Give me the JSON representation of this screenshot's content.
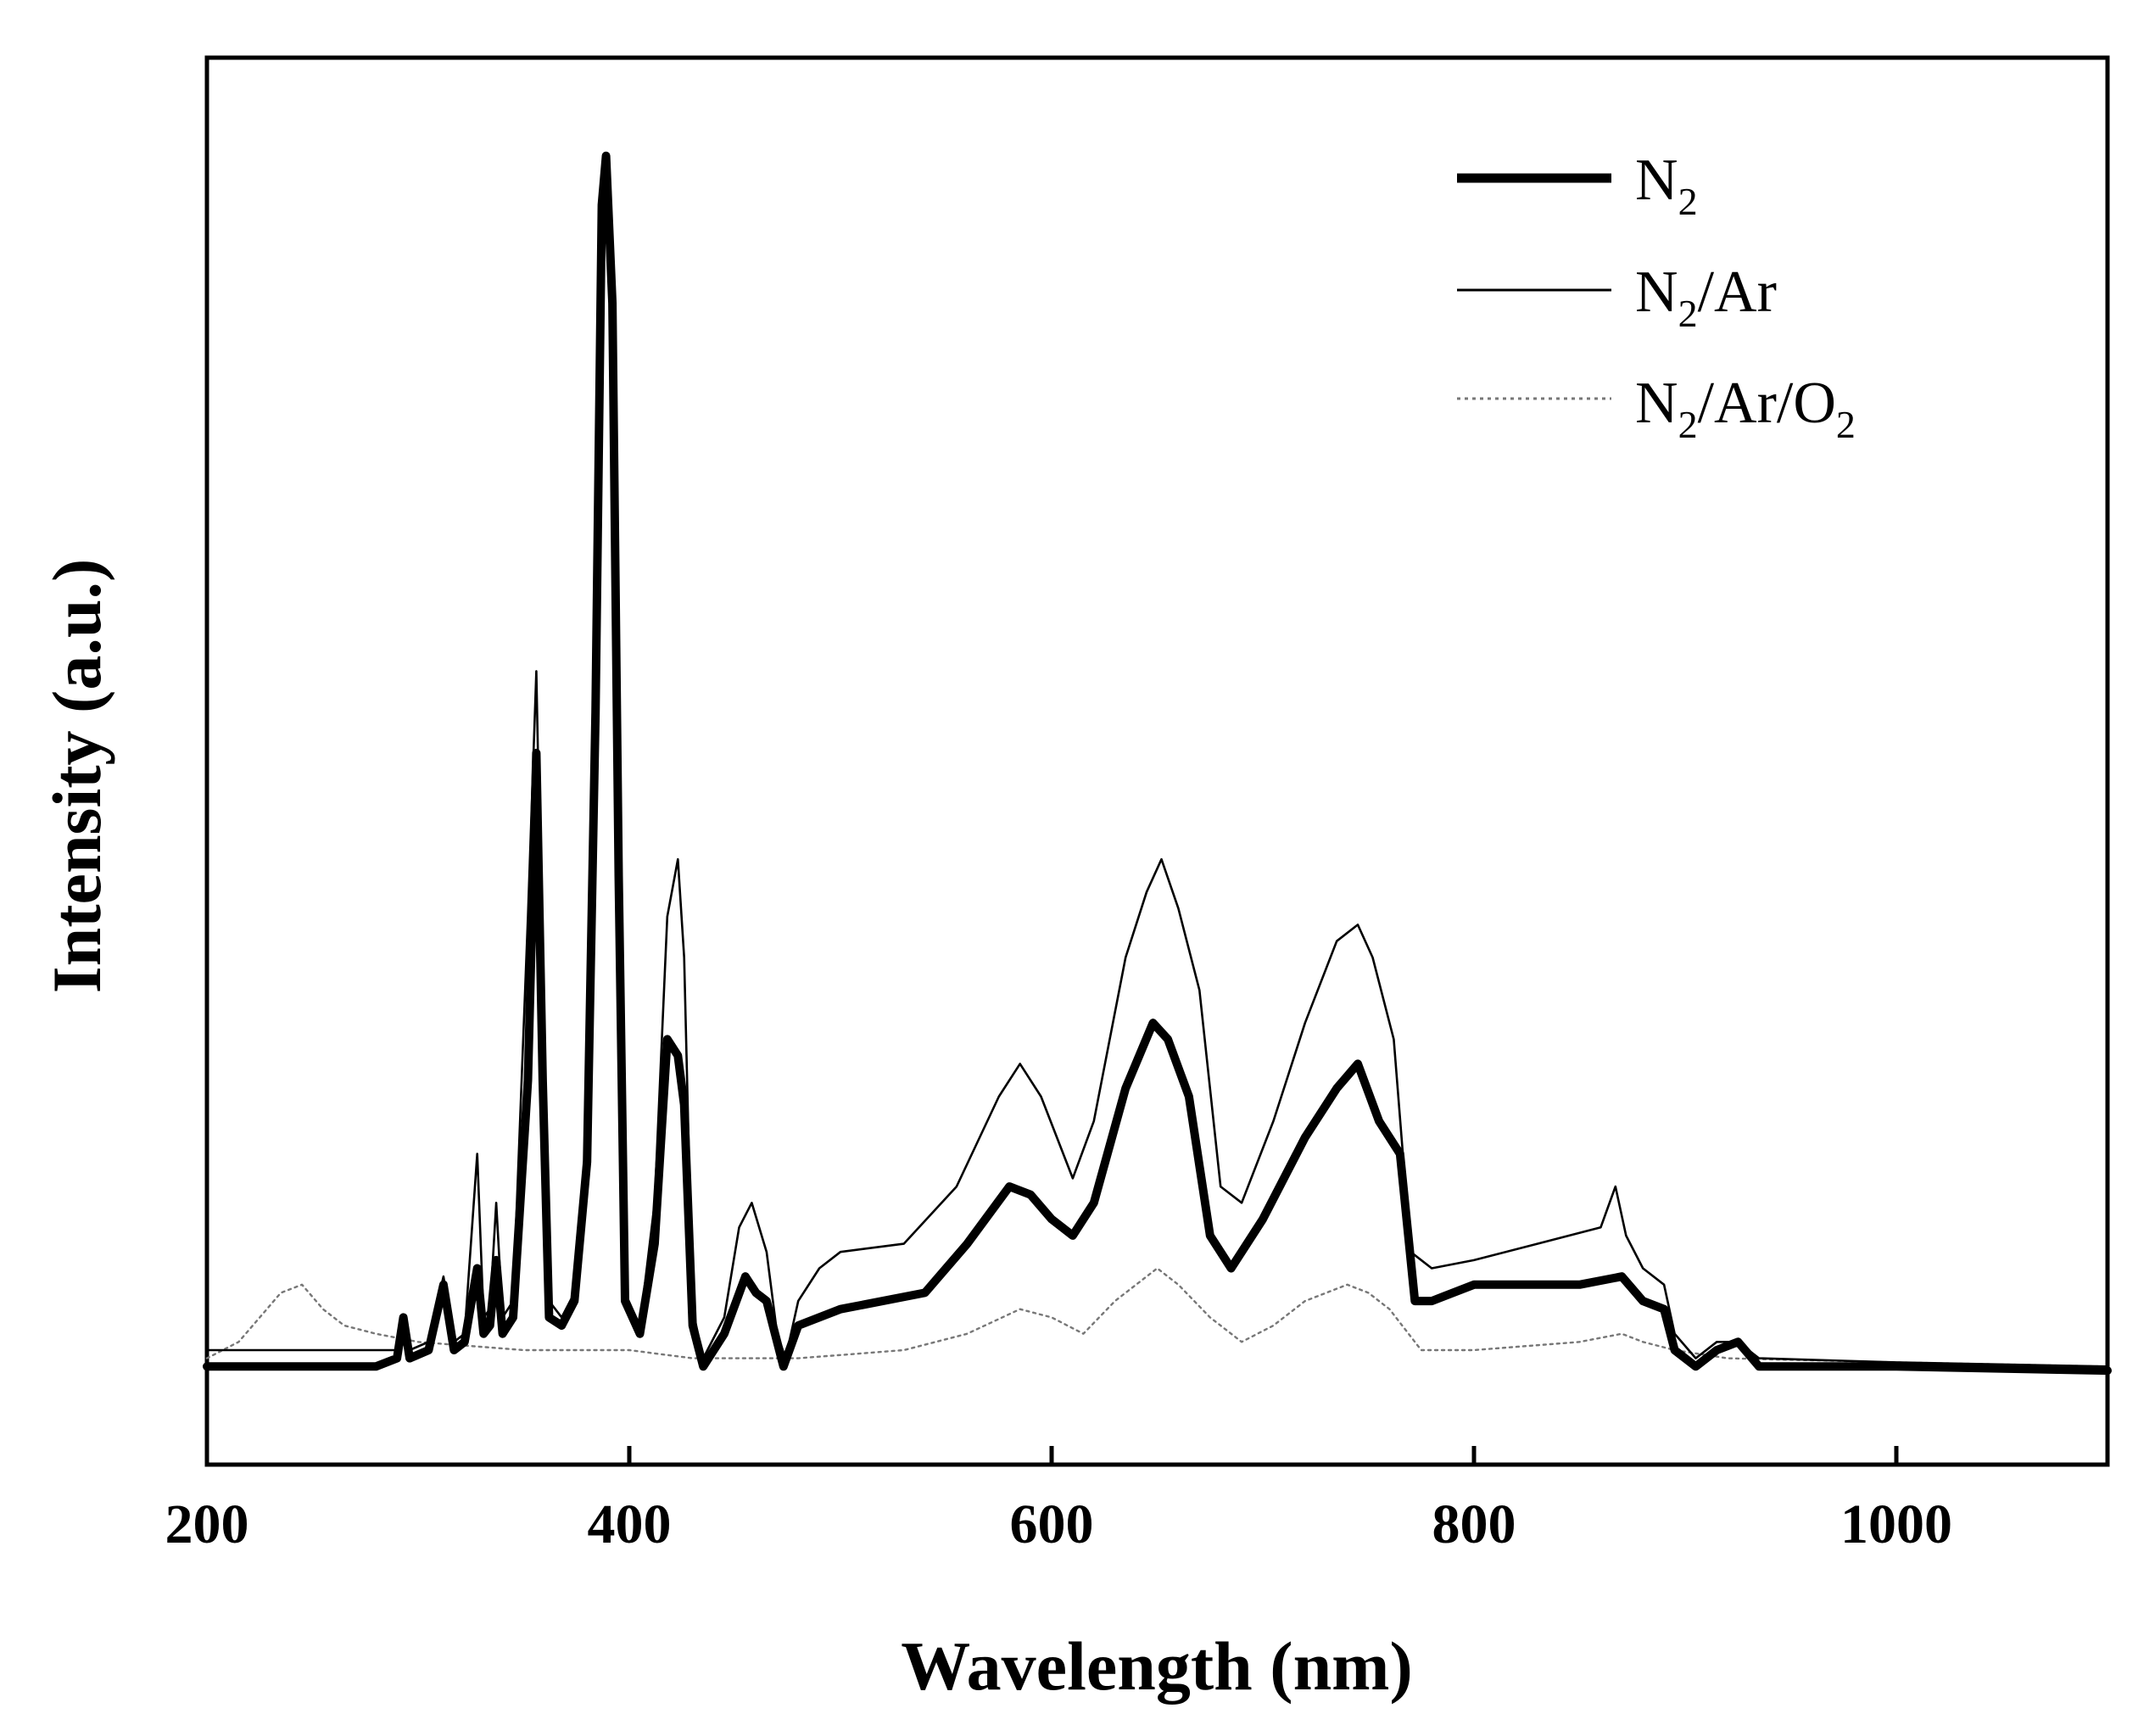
{
  "chart_data": {
    "type": "line",
    "title": "",
    "xlabel": "Wavelength (nm)",
    "ylabel": "Intensity (a.u.)",
    "xlim": [
      200,
      1100
    ],
    "ylim": [
      -12,
      160
    ],
    "xticks": [
      200,
      400,
      600,
      800,
      1000
    ],
    "x_tick_labels": [
      "200",
      "400",
      "600",
      "800",
      "1000"
    ],
    "grid": false,
    "legend_position": "top-right",
    "series": [
      {
        "name": "N2",
        "label_main": "N",
        "label_sub": "2",
        "label_rest": "",
        "style": "thick",
        "color": "#000000",
        "points": [
          [
            200,
            0
          ],
          [
            280,
            0
          ],
          [
            290,
            1
          ],
          [
            293,
            6
          ],
          [
            296,
            1
          ],
          [
            305,
            2
          ],
          [
            312,
            10
          ],
          [
            317,
            2
          ],
          [
            322,
            3
          ],
          [
            328,
            12
          ],
          [
            331,
            4
          ],
          [
            334,
            5
          ],
          [
            337,
            13
          ],
          [
            340,
            4
          ],
          [
            345,
            6
          ],
          [
            352,
            35
          ],
          [
            356,
            75
          ],
          [
            359,
            35
          ],
          [
            362,
            6
          ],
          [
            368,
            5
          ],
          [
            374,
            8
          ],
          [
            380,
            25
          ],
          [
            384,
            80
          ],
          [
            387,
            142
          ],
          [
            389,
            148
          ],
          [
            392,
            130
          ],
          [
            395,
            60
          ],
          [
            398,
            8
          ],
          [
            405,
            4
          ],
          [
            412,
            15
          ],
          [
            418,
            40
          ],
          [
            423,
            38
          ],
          [
            426,
            32
          ],
          [
            430,
            5
          ],
          [
            435,
            0
          ],
          [
            445,
            4
          ],
          [
            455,
            11
          ],
          [
            460,
            9
          ],
          [
            465,
            8
          ],
          [
            470,
            3
          ],
          [
            473,
            0
          ],
          [
            480,
            5
          ],
          [
            500,
            7
          ],
          [
            540,
            9
          ],
          [
            560,
            15
          ],
          [
            580,
            22
          ],
          [
            590,
            21
          ],
          [
            600,
            18
          ],
          [
            610,
            16
          ],
          [
            620,
            20
          ],
          [
            635,
            34
          ],
          [
            648,
            42
          ],
          [
            655,
            40
          ],
          [
            665,
            33
          ],
          [
            675,
            16
          ],
          [
            685,
            12
          ],
          [
            700,
            18
          ],
          [
            720,
            28
          ],
          [
            735,
            34
          ],
          [
            745,
            37
          ],
          [
            755,
            30
          ],
          [
            765,
            26
          ],
          [
            772,
            8
          ],
          [
            780,
            8
          ],
          [
            800,
            10
          ],
          [
            850,
            10
          ],
          [
            870,
            11
          ],
          [
            880,
            8
          ],
          [
            890,
            7
          ],
          [
            895,
            2
          ],
          [
            905,
            0
          ],
          [
            915,
            2
          ],
          [
            925,
            3
          ],
          [
            935,
            0
          ],
          [
            1000,
            0
          ],
          [
            1100,
            -0.5
          ]
        ]
      },
      {
        "name": "N2/Ar",
        "label_main": "N",
        "label_sub": "2",
        "label_rest": "/Ar",
        "style": "thin",
        "color": "#000000",
        "points": [
          [
            200,
            2
          ],
          [
            280,
            2
          ],
          [
            290,
            2
          ],
          [
            293,
            6
          ],
          [
            296,
            2
          ],
          [
            305,
            3
          ],
          [
            312,
            11
          ],
          [
            317,
            3
          ],
          [
            322,
            4
          ],
          [
            328,
            26
          ],
          [
            331,
            6
          ],
          [
            334,
            7
          ],
          [
            337,
            20
          ],
          [
            340,
            6
          ],
          [
            345,
            8
          ],
          [
            352,
            55
          ],
          [
            356,
            85
          ],
          [
            359,
            45
          ],
          [
            362,
            8
          ],
          [
            368,
            6
          ],
          [
            374,
            9
          ],
          [
            380,
            30
          ],
          [
            384,
            90
          ],
          [
            387,
            140
          ],
          [
            389,
            144
          ],
          [
            392,
            125
          ],
          [
            395,
            58
          ],
          [
            398,
            9
          ],
          [
            405,
            5
          ],
          [
            412,
            20
          ],
          [
            418,
            55
          ],
          [
            423,
            62
          ],
          [
            426,
            50
          ],
          [
            430,
            7
          ],
          [
            435,
            1
          ],
          [
            445,
            6
          ],
          [
            452,
            17
          ],
          [
            458,
            20
          ],
          [
            465,
            14
          ],
          [
            470,
            4
          ],
          [
            474,
            1
          ],
          [
            480,
            8
          ],
          [
            490,
            12
          ],
          [
            500,
            14
          ],
          [
            530,
            15
          ],
          [
            555,
            22
          ],
          [
            575,
            33
          ],
          [
            585,
            37
          ],
          [
            595,
            33
          ],
          [
            610,
            23
          ],
          [
            620,
            30
          ],
          [
            635,
            50
          ],
          [
            645,
            58
          ],
          [
            652,
            62
          ],
          [
            660,
            56
          ],
          [
            670,
            46
          ],
          [
            680,
            22
          ],
          [
            690,
            20
          ],
          [
            705,
            30
          ],
          [
            720,
            42
          ],
          [
            735,
            52
          ],
          [
            745,
            54
          ],
          [
            752,
            50
          ],
          [
            762,
            40
          ],
          [
            770,
            14
          ],
          [
            780,
            12
          ],
          [
            800,
            13
          ],
          [
            830,
            15
          ],
          [
            860,
            17
          ],
          [
            867,
            22
          ],
          [
            872,
            16
          ],
          [
            880,
            12
          ],
          [
            890,
            10
          ],
          [
            895,
            4
          ],
          [
            905,
            1
          ],
          [
            915,
            3
          ],
          [
            925,
            3
          ],
          [
            935,
            1
          ],
          [
            1000,
            0.5
          ],
          [
            1100,
            0
          ]
        ]
      },
      {
        "name": "N2/Ar/O2",
        "label_main": "N",
        "label_sub": "2",
        "label_rest": "/Ar/O",
        "label_sub2": "2",
        "style": "dotted",
        "color": "#777777",
        "points": [
          [
            200,
            1
          ],
          [
            215,
            3
          ],
          [
            225,
            6
          ],
          [
            235,
            9
          ],
          [
            245,
            10
          ],
          [
            255,
            7
          ],
          [
            265,
            5
          ],
          [
            280,
            4
          ],
          [
            300,
            3
          ],
          [
            350,
            2
          ],
          [
            400,
            2
          ],
          [
            430,
            1
          ],
          [
            480,
            1
          ],
          [
            530,
            2
          ],
          [
            560,
            4
          ],
          [
            585,
            7
          ],
          [
            600,
            6
          ],
          [
            615,
            4
          ],
          [
            630,
            8
          ],
          [
            650,
            12
          ],
          [
            660,
            10
          ],
          [
            675,
            6
          ],
          [
            690,
            3
          ],
          [
            705,
            5
          ],
          [
            720,
            8
          ],
          [
            740,
            10
          ],
          [
            750,
            9
          ],
          [
            760,
            7
          ],
          [
            775,
            2
          ],
          [
            800,
            2
          ],
          [
            850,
            3
          ],
          [
            870,
            4
          ],
          [
            880,
            3
          ],
          [
            895,
            2
          ],
          [
            920,
            1
          ],
          [
            1000,
            0.5
          ],
          [
            1100,
            0
          ]
        ]
      }
    ]
  }
}
